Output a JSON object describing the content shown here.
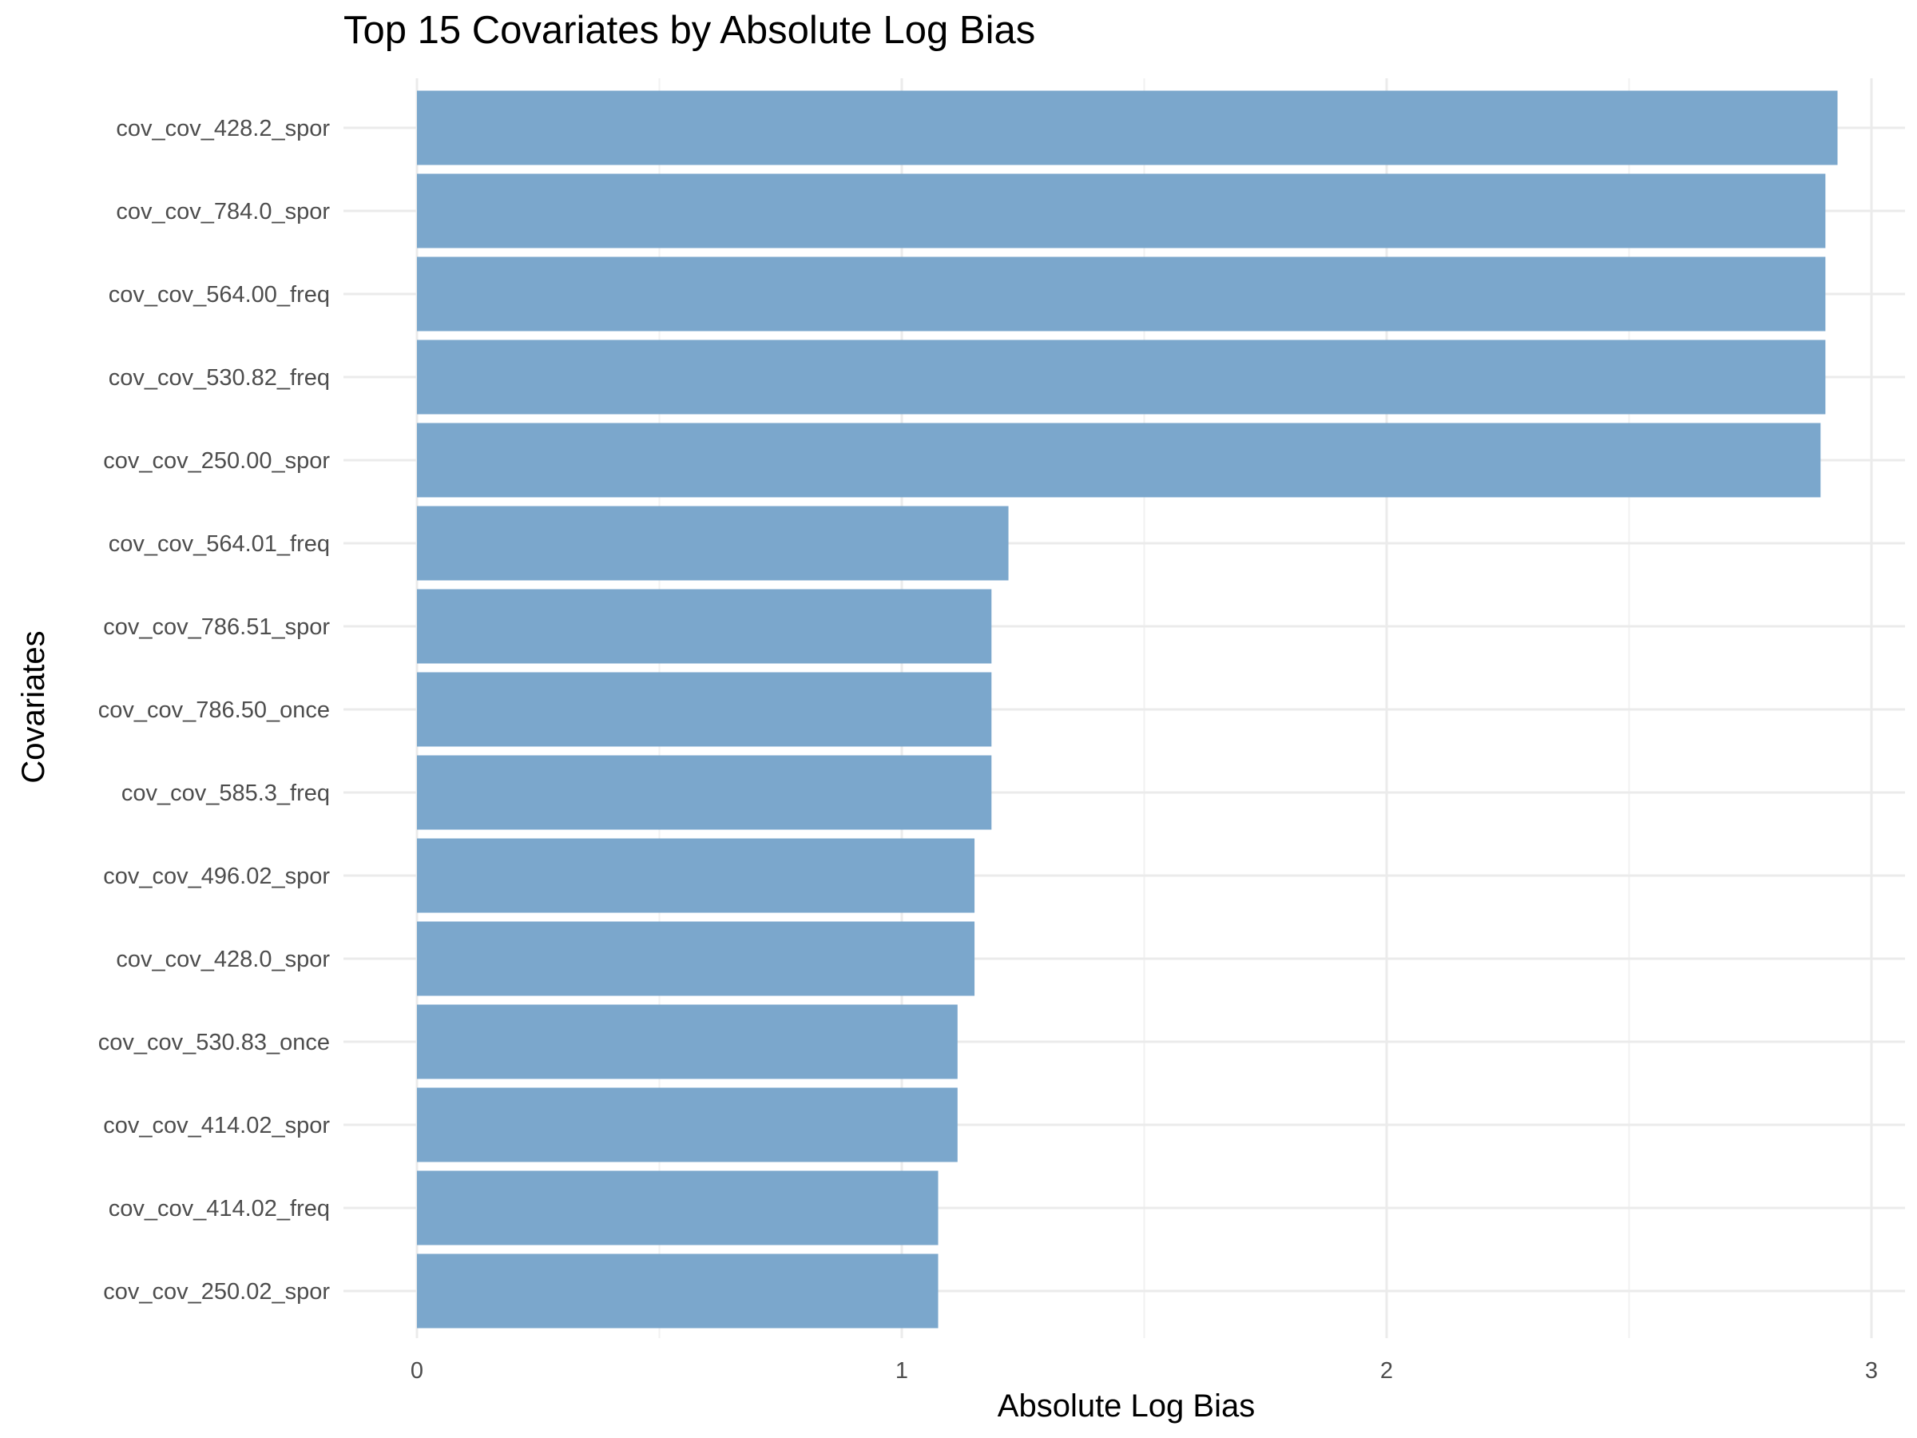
{
  "chart_data": {
    "type": "bar",
    "orientation": "horizontal",
    "title": "Top 15 Covariates by Absolute Log Bias",
    "xlabel": "Absolute Log Bias",
    "ylabel": "Covariates",
    "xlim": [
      0,
      3.07
    ],
    "xticks": [
      0,
      1,
      2,
      3
    ],
    "grid": true,
    "bar_color": "#7ba7cc",
    "categories": [
      "cov_cov_428.2_spor",
      "cov_cov_784.0_spor",
      "cov_cov_564.00_freq",
      "cov_cov_530.82_freq",
      "cov_cov_250.00_spor",
      "cov_cov_564.01_freq",
      "cov_cov_786.51_spor",
      "cov_cov_786.50_once",
      "cov_cov_585.3_freq",
      "cov_cov_496.02_spor",
      "cov_cov_428.0_spor",
      "cov_cov_530.83_once",
      "cov_cov_414.02_spor",
      "cov_cov_414.02_freq",
      "cov_cov_250.02_spor"
    ],
    "values": [
      2.93,
      2.905,
      2.905,
      2.905,
      2.895,
      1.22,
      1.185,
      1.185,
      1.185,
      1.15,
      1.15,
      1.115,
      1.115,
      1.075,
      1.075
    ]
  }
}
